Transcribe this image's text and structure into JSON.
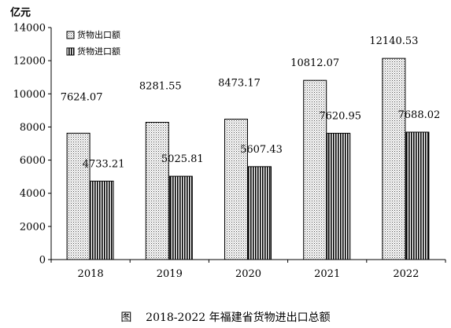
{
  "chart_data": {
    "type": "bar",
    "unit_label": "亿元",
    "categories": [
      "2018",
      "2019",
      "2020",
      "2021",
      "2022"
    ],
    "series": [
      {
        "name": "货物出口额",
        "values": [
          7624.07,
          8281.55,
          8473.17,
          10812.07,
          12140.53
        ],
        "labels": [
          "7624.07",
          "8281.55",
          "8473.17",
          "10812.07",
          "12140.53"
        ],
        "pattern": "dotted"
      },
      {
        "name": "货物进口额",
        "values": [
          4733.21,
          5025.81,
          5607.43,
          7620.95,
          7688.02
        ],
        "labels": [
          "4733.21",
          "5025.81",
          "5607.43",
          "7620.95",
          "7688.02"
        ],
        "pattern": "vertical-stripes"
      }
    ],
    "ylim": [
      0,
      14000
    ],
    "yticks": [
      0,
      2000,
      4000,
      6000,
      8000,
      10000,
      12000,
      14000
    ],
    "legend_position": "top-left",
    "grid": false
  },
  "caption": {
    "prefix": "图",
    "text": "2018-2022 年福建省货物进出口总额"
  }
}
